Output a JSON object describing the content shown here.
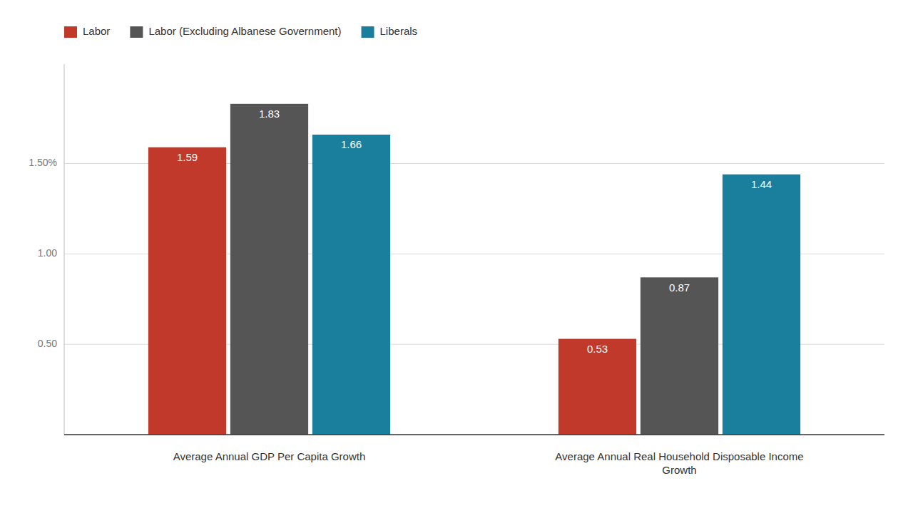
{
  "chart_data": {
    "type": "bar",
    "categories": [
      "Average Annual GDP Per Capita Growth",
      "Average Annual Real Household Disposable Income\nGrowth"
    ],
    "series": [
      {
        "name": "Labor",
        "color": "#c0392b",
        "values": [
          1.59,
          0.53
        ]
      },
      {
        "name": "Labor (Excluding Albanese Government)",
        "color": "#555555",
        "values": [
          1.83,
          0.87
        ]
      },
      {
        "name": "Liberals",
        "color": "#1a7f9c",
        "values": [
          1.66,
          1.44
        ]
      }
    ],
    "ylim": [
      0,
      2.05
    ],
    "yticks": [
      {
        "value": 0.5,
        "label": "0.50"
      },
      {
        "value": 1.0,
        "label": "1.00"
      },
      {
        "value": 1.5,
        "label": "1.50%"
      }
    ],
    "grid": true,
    "legend": "upper left",
    "data_labels": true
  }
}
